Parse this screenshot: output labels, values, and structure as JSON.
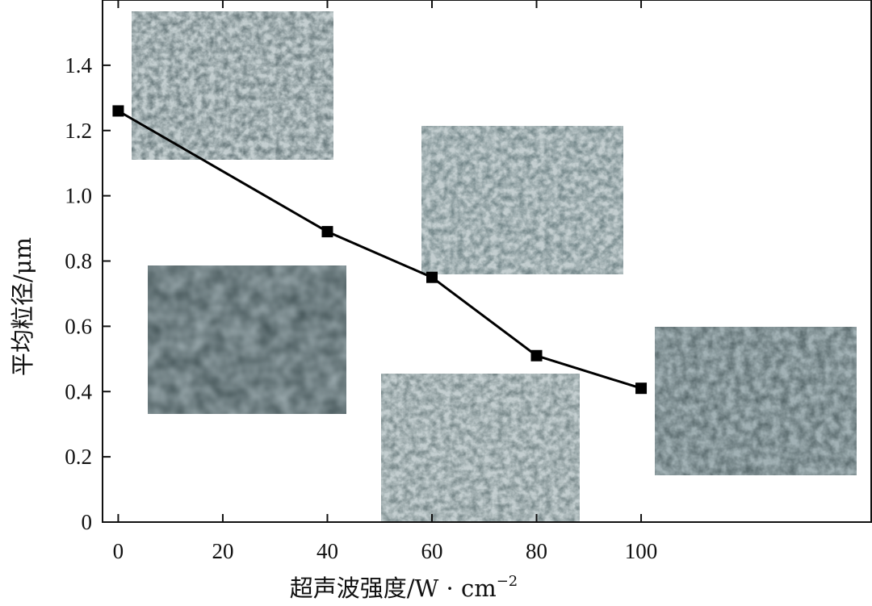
{
  "chart_data": {
    "type": "line",
    "xlabel": "超声波强度/W · cm",
    "xlabel_sup": "−2",
    "ylabel": "平均粒径/μm",
    "xlim": [
      -3,
      144
    ],
    "ylim": [
      0,
      1.6
    ],
    "x_ticks": [
      0,
      20,
      40,
      60,
      80,
      100
    ],
    "y_ticks": [
      0,
      0.2,
      0.4,
      0.6,
      0.8,
      1.0,
      1.2,
      1.4
    ],
    "x_tick_labels": [
      "0",
      "20",
      "40",
      "60",
      "80",
      "100"
    ],
    "y_tick_labels": [
      "0",
      "0.2",
      "0.4",
      "0.6",
      "0.8",
      "1.0",
      "1.2",
      "1.4"
    ],
    "grid": false,
    "marker": "square",
    "series": [
      {
        "x": [
          0,
          40,
          60,
          80,
          100
        ],
        "y": [
          1.26,
          0.89,
          0.75,
          0.51,
          0.41
        ]
      }
    ],
    "insets": [
      {
        "id": "sem-0w",
        "x": 0
      },
      {
        "id": "sem-40w",
        "x": 40
      },
      {
        "id": "sem-60w",
        "x": 60
      },
      {
        "id": "sem-80w",
        "x": 80
      },
      {
        "id": "sem-100w",
        "x": 100
      }
    ]
  }
}
